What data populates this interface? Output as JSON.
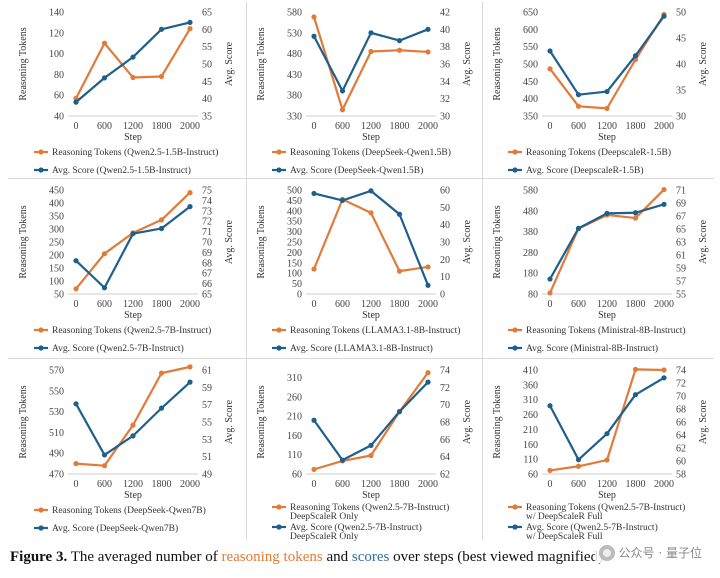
{
  "colors": {
    "tokens": "#e07b39",
    "score": "#1f5f8b",
    "grid": "#d9d9d9"
  },
  "chart_data": [
    {
      "type": "line",
      "x": [
        "0",
        "600",
        "1200",
        "1800",
        "2000"
      ],
      "xlabel": "Step",
      "ylabel_left": "Reasoning Tokens",
      "ylabel_right": "Avg. Score",
      "y_left_ticks": [
        "40",
        "60",
        "80",
        "100",
        "120",
        "140"
      ],
      "y_left_lim": [
        40,
        140
      ],
      "y_right_ticks": [
        "35",
        "40",
        "45",
        "50",
        "55",
        "60",
        "65"
      ],
      "y_right_lim": [
        35,
        65
      ],
      "series": [
        {
          "name": "Reasoning Tokens (Qwen2.5-1.5B-Instruct)",
          "axis": "left",
          "values": [
            57,
            110,
            77,
            78,
            124
          ]
        },
        {
          "name": "Avg. Score (Qwen2.5-1.5B-Instruct)",
          "axis": "right",
          "values": [
            39,
            46,
            52,
            60,
            62
          ]
        }
      ]
    },
    {
      "type": "line",
      "x": [
        "0",
        "600",
        "1200",
        "1800",
        "2000"
      ],
      "xlabel": "Step",
      "ylabel_left": "Reasoning Tokens",
      "ylabel_right": "Avg. Score",
      "y_left_ticks": [
        "330",
        "380",
        "430",
        "480",
        "530",
        "580"
      ],
      "y_left_lim": [
        330,
        580
      ],
      "y_right_ticks": [
        "30",
        "32",
        "34",
        "36",
        "38",
        "40",
        "42"
      ],
      "y_right_lim": [
        30,
        42
      ],
      "series": [
        {
          "name": "Reasoning Tokens (DeepSeek-Qwen1.5B)",
          "axis": "left",
          "values": [
            568,
            345,
            485,
            488,
            484
          ]
        },
        {
          "name": "Avg. Score (DeepSeek-Qwen1.5B)",
          "axis": "right",
          "values": [
            39.2,
            32.9,
            39.6,
            38.7,
            40
          ]
        }
      ]
    },
    {
      "type": "line",
      "x": [
        "0",
        "600",
        "1200",
        "1800",
        "2000"
      ],
      "xlabel": "Step",
      "ylabel_left": "Reasoning Tokens",
      "ylabel_right": "Avg. Score",
      "y_left_ticks": [
        "350",
        "400",
        "450",
        "500",
        "550",
        "600",
        "650"
      ],
      "y_left_lim": [
        350,
        650
      ],
      "y_right_ticks": [
        "30",
        "35",
        "40",
        "45",
        "50"
      ],
      "y_right_lim": [
        30,
        50
      ],
      "series": [
        {
          "name": "Reasoning Tokens (DeepscaleR-1.5B)",
          "axis": "left",
          "values": [
            486,
            378,
            372,
            513,
            643
          ]
        },
        {
          "name": "Avg. Score (DeepscaleR-1.5B)",
          "axis": "right",
          "values": [
            42.5,
            34.1,
            34.7,
            41.6,
            49.2
          ]
        }
      ]
    },
    {
      "type": "line",
      "x": [
        "0",
        "600",
        "1200",
        "1800",
        "2000"
      ],
      "xlabel": "Step",
      "ylabel_left": "Reasoning Tokens",
      "ylabel_right": "Avg. Score",
      "y_left_ticks": [
        "50",
        "100",
        "150",
        "200",
        "250",
        "300",
        "350",
        "400",
        "450"
      ],
      "y_left_lim": [
        50,
        450
      ],
      "y_right_ticks": [
        "65",
        "66",
        "67",
        "68",
        "69",
        "70",
        "71",
        "72",
        "73",
        "74",
        "75"
      ],
      "y_right_lim": [
        65,
        75
      ],
      "series": [
        {
          "name": "Reasoning Tokens (Qwen2.5-7B-Instruct)",
          "axis": "left",
          "values": [
            70,
            205,
            285,
            335,
            440
          ]
        },
        {
          "name": "Avg. Score (Qwen2.5-7B-Instruct)",
          "axis": "right",
          "values": [
            68.2,
            65.6,
            70.8,
            71.3,
            73.4
          ]
        }
      ]
    },
    {
      "type": "line",
      "x": [
        "0",
        "600",
        "1200",
        "1800",
        "2000"
      ],
      "xlabel": "Step",
      "ylabel_left": "Reasoning Tokens",
      "ylabel_right": "Avg. Score",
      "y_left_ticks": [
        "0",
        "50",
        "100",
        "150",
        "200",
        "250",
        "300",
        "350",
        "400",
        "450",
        "500"
      ],
      "y_left_lim": [
        0,
        500
      ],
      "y_right_ticks": [
        "0",
        "10",
        "20",
        "30",
        "40",
        "50",
        "60"
      ],
      "y_right_lim": [
        0,
        60
      ],
      "series": [
        {
          "name": "Reasoning Tokens (LLAMA3.1-8B-Instruct)",
          "axis": "left",
          "values": [
            120,
            455,
            390,
            110,
            130
          ]
        },
        {
          "name": "Avg. Score (LLAMA3.1-8B-Instruct)",
          "axis": "right",
          "values": [
            58,
            54,
            59.5,
            46,
            5
          ]
        }
      ]
    },
    {
      "type": "line",
      "x": [
        "0",
        "600",
        "1200",
        "1800",
        "2000"
      ],
      "xlabel": "Step",
      "ylabel_left": "Reasoning Tokens",
      "ylabel_right": "Avg. Score",
      "y_left_ticks": [
        "80",
        "180",
        "280",
        "380",
        "480",
        "580"
      ],
      "y_left_lim": [
        80,
        580
      ],
      "y_right_ticks": [
        "55",
        "57",
        "59",
        "61",
        "63",
        "65",
        "67",
        "69",
        "71"
      ],
      "y_right_lim": [
        55,
        71
      ],
      "series": [
        {
          "name": "Reasoning Tokens (Ministral-8B-Instruct)",
          "axis": "left",
          "values": [
            85,
            395,
            460,
            445,
            582
          ]
        },
        {
          "name": "Avg. Score (Ministral-8B-Instruct)",
          "axis": "right",
          "values": [
            57.3,
            65.1,
            67.4,
            67.5,
            68.8
          ]
        }
      ]
    },
    {
      "type": "line",
      "x": [
        "0",
        "600",
        "1200",
        "1800",
        "2000"
      ],
      "xlabel": "Step",
      "ylabel_left": "Reasoning Tokens",
      "ylabel_right": "Avg. Score",
      "y_left_ticks": [
        "470",
        "490",
        "510",
        "530",
        "550",
        "570"
      ],
      "y_left_lim": [
        470,
        570
      ],
      "y_right_ticks": [
        "49",
        "51",
        "53",
        "55",
        "57",
        "59",
        "61"
      ],
      "y_right_lim": [
        49,
        61
      ],
      "series": [
        {
          "name": "Reasoning Tokens (DeepSeek-Qwen7B)",
          "axis": "left",
          "values": [
            480,
            478,
            517,
            567,
            573
          ]
        },
        {
          "name": "Avg. Score (DeepSeek-Qwen7B)",
          "axis": "right",
          "values": [
            57.1,
            51.2,
            53.4,
            56.6,
            59.6
          ]
        }
      ]
    },
    {
      "type": "line",
      "x": [
        "0",
        "600",
        "1200",
        "1800",
        "2000"
      ],
      "xlabel": "Step",
      "ylabel_left": "Reasoning Tokens",
      "ylabel_right": "Avg. Score",
      "y_left_ticks": [
        "60",
        "110",
        "160",
        "210",
        "260",
        "310"
      ],
      "y_left_lim": [
        60,
        330
      ],
      "y_right_ticks": [
        "62",
        "64",
        "66",
        "68",
        "70",
        "72",
        "74"
      ],
      "y_right_lim": [
        62,
        74
      ],
      "series": [
        {
          "name": "Reasoning Tokens (Qwen2.5-7B-Instruct) DeepScaleR Only",
          "axis": "left",
          "values": [
            72,
            94,
            108,
            222,
            323
          ]
        },
        {
          "name": "Avg. Score (Qwen2.5-7B-Instruct) DeepScaleR Only",
          "axis": "right",
          "values": [
            68.2,
            63.6,
            65.3,
            69.2,
            72.6
          ]
        }
      ]
    },
    {
      "type": "line",
      "x": [
        "0",
        "600",
        "1200",
        "1800",
        "2000"
      ],
      "xlabel": "Step",
      "ylabel_left": "Reasoning Tokens",
      "ylabel_right": "Avg. Score",
      "y_left_ticks": [
        "60",
        "110",
        "160",
        "210",
        "260",
        "310",
        "360",
        "410"
      ],
      "y_left_lim": [
        60,
        410
      ],
      "y_right_ticks": [
        "58",
        "60",
        "62",
        "64",
        "66",
        "68",
        "70",
        "72",
        "74"
      ],
      "y_right_lim": [
        58,
        74
      ],
      "series": [
        {
          "name": "Reasoning Tokens (Qwen2.5-7B-Instruct) w/ DeepScaleR Full",
          "axis": "left",
          "values": [
            72,
            86,
            107,
            412,
            410
          ]
        },
        {
          "name": "Avg. Score (Qwen2.5-7B-Instruct) w/ DeepScaleR Full",
          "axis": "right",
          "values": [
            68.5,
            60.2,
            64.2,
            70.2,
            72.8
          ]
        }
      ]
    }
  ],
  "legends": [
    {
      "tokens": [
        "Reasoning Tokens (Qwen2.5-1.5B-Instruct)"
      ],
      "score": [
        "Avg. Score (Qwen2.5-1.5B-Instruct)"
      ]
    },
    {
      "tokens": [
        "Reasoning Tokens (DeepSeek-Qwen1.5B)"
      ],
      "score": [
        "Avg. Score (DeepSeek-Qwen1.5B)"
      ]
    },
    {
      "tokens": [
        "Reasoning Tokens (DeepscaleR-1.5B)"
      ],
      "score": [
        "Avg. Score (DeepscaleR-1.5B)"
      ]
    },
    {
      "tokens": [
        "Reasoning Tokens (Qwen2.5-7B-Instruct)"
      ],
      "score": [
        "Avg. Score (Qwen2.5-7B-Instruct)"
      ]
    },
    {
      "tokens": [
        "Reasoning Tokens (LLAMA3.1-8B-Instruct)"
      ],
      "score": [
        "Avg. Score (LLAMA3.1-8B-Instruct)"
      ]
    },
    {
      "tokens": [
        "Reasoning Tokens (Ministral-8B-Instruct)"
      ],
      "score": [
        "Avg. Score (Ministral-8B-Instruct)"
      ]
    },
    {
      "tokens": [
        "Reasoning Tokens (DeepSeek-Qwen7B)"
      ],
      "score": [
        "Avg. Score (DeepSeek-Qwen7B)"
      ]
    },
    {
      "tokens": [
        "Reasoning Tokens (Qwen2.5-7B-Instruct)",
        "DeepScaleR Only"
      ],
      "score": [
        "Avg. Score (Qwen2.5-7B-Instruct)",
        "DeepScaleR Only"
      ]
    },
    {
      "tokens": [
        "Reasoning Tokens (Qwen2.5-7B-Instruct)",
        "w/ DeepScaleR Full"
      ],
      "score": [
        "Avg. Score (Qwen2.5-7B-Instruct)",
        "w/ DeepScaleR Full"
      ]
    }
  ],
  "caption": {
    "label": "Figure 3.",
    "text1": " The averaged number of ",
    "tokens_word": "reasoning tokens",
    "text2": " and ",
    "scores_word": "scores",
    "text3": " over steps (best viewed magnified)."
  },
  "watermark": {
    "text": "公众号 · 量子位"
  }
}
